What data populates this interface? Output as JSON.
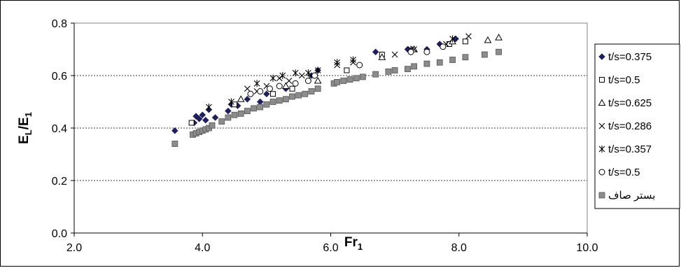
{
  "chart_data": {
    "type": "scatter",
    "title": "",
    "xlabel": "Fr",
    "xlabel_sub": "1",
    "ylabel": "E",
    "ylabel_sub1": "L",
    "ylabel_mid": "/E",
    "ylabel_sub2": "1",
    "xlim": [
      2.0,
      10.0
    ],
    "ylim": [
      0.0,
      0.8
    ],
    "xticks": [
      "2.0",
      "4.0",
      "6.0",
      "8.0",
      "10.0"
    ],
    "yticks": [
      "0.0",
      "0.2",
      "0.4",
      "0.6",
      "0.8"
    ],
    "grid": "horizontal dashed",
    "legend_position": "right",
    "series": [
      {
        "name": "t/s=0.375",
        "marker": "diamond",
        "color": "#1f1f5e",
        "x": [
          3.57,
          3.87,
          3.9,
          3.95,
          4.0,
          4.05,
          4.1,
          4.2,
          4.4,
          4.45,
          4.55,
          4.7,
          4.9,
          5.0,
          5.3,
          5.7,
          5.8,
          6.7,
          7.2,
          7.5,
          7.7,
          7.95
        ],
        "y": [
          0.39,
          0.42,
          0.445,
          0.435,
          0.45,
          0.43,
          0.47,
          0.44,
          0.465,
          0.49,
          0.485,
          0.51,
          0.5,
          0.53,
          0.55,
          0.6,
          0.62,
          0.69,
          0.7,
          0.7,
          0.72,
          0.74
        ]
      },
      {
        "name": "t/s=0.5",
        "marker": "square-open",
        "color": "#000000",
        "x": [
          3.83,
          4.5,
          5.1,
          5.4,
          6.25,
          6.8,
          7.85,
          8.1
        ],
        "y": [
          0.42,
          0.49,
          0.53,
          0.55,
          0.62,
          0.68,
          0.72,
          0.73
        ]
      },
      {
        "name": "t/s=0.625",
        "marker": "triangle-open",
        "color": "#000000",
        "x": [
          4.6,
          5.3,
          5.8,
          6.8,
          7.3,
          7.9,
          8.45,
          8.62
        ],
        "y": [
          0.51,
          0.56,
          0.58,
          0.67,
          0.7,
          0.73,
          0.735,
          0.745
        ]
      },
      {
        "name": "t/s=0.286",
        "marker": "x",
        "color": "#000000",
        "x": [
          4.7,
          4.85,
          5.0,
          5.2,
          5.35,
          5.55,
          5.7,
          6.1,
          6.35,
          7.0,
          7.3,
          7.8,
          8.15
        ],
        "y": [
          0.55,
          0.54,
          0.56,
          0.59,
          0.58,
          0.6,
          0.6,
          0.64,
          0.65,
          0.68,
          0.7,
          0.72,
          0.75
        ]
      },
      {
        "name": "t/s=0.357",
        "marker": "star",
        "color": "#000000",
        "x": [
          4.1,
          4.45,
          4.85,
          5.1,
          5.25,
          5.45,
          5.65,
          5.8,
          6.1,
          6.35,
          7.25,
          7.9
        ],
        "y": [
          0.48,
          0.5,
          0.57,
          0.59,
          0.6,
          0.61,
          0.61,
          0.62,
          0.65,
          0.66,
          0.7,
          0.74
        ]
      },
      {
        "name": "t/s=0.5",
        "marker": "circle-open",
        "color": "#000000",
        "x": [
          4.75,
          4.9,
          5.05,
          5.2,
          5.45,
          5.65,
          5.75,
          6.45,
          7.25,
          7.5,
          7.75
        ],
        "y": [
          0.53,
          0.54,
          0.55,
          0.56,
          0.57,
          0.58,
          0.6,
          0.64,
          0.69,
          0.69,
          0.71
        ],
        "hollow_fill": true
      },
      {
        "name": "بستر صاف",
        "marker": "square-filled",
        "color": "#8c8c8c",
        "x": [
          3.57,
          3.85,
          3.9,
          3.95,
          4.0,
          4.05,
          4.1,
          4.15,
          4.3,
          4.4,
          4.5,
          4.6,
          4.7,
          4.8,
          4.9,
          5.0,
          5.1,
          5.2,
          5.3,
          5.4,
          5.5,
          5.6,
          5.7,
          5.8,
          6.05,
          6.1,
          6.2,
          6.3,
          6.4,
          6.5,
          6.7,
          6.9,
          7.0,
          7.2,
          7.3,
          7.5,
          7.7,
          7.9,
          8.1,
          8.4,
          8.62
        ],
        "y": [
          0.34,
          0.375,
          0.38,
          0.385,
          0.39,
          0.395,
          0.4,
          0.41,
          0.425,
          0.44,
          0.45,
          0.455,
          0.465,
          0.475,
          0.48,
          0.49,
          0.5,
          0.505,
          0.51,
          0.52,
          0.525,
          0.53,
          0.54,
          0.55,
          0.57,
          0.575,
          0.58,
          0.585,
          0.59,
          0.595,
          0.605,
          0.615,
          0.62,
          0.625,
          0.635,
          0.645,
          0.65,
          0.66,
          0.67,
          0.68,
          0.69
        ]
      }
    ]
  }
}
